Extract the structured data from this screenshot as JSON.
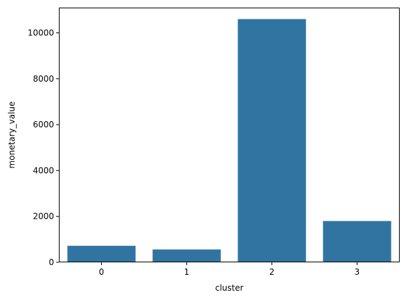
{
  "chart_data": {
    "type": "bar",
    "title": "",
    "xlabel": "cluster",
    "ylabel": "monetary_value",
    "categories": [
      "0",
      "1",
      "2",
      "3"
    ],
    "values": [
      720,
      560,
      10600,
      1800
    ],
    "ylim": [
      0,
      11100
    ],
    "yticks": [
      0,
      2000,
      4000,
      6000,
      8000,
      10000
    ],
    "ytick_labels": [
      "0",
      "2000",
      "4000",
      "6000",
      "8000",
      "10000"
    ],
    "bar_color": "#3274a1",
    "grid": false,
    "legend": "none"
  }
}
